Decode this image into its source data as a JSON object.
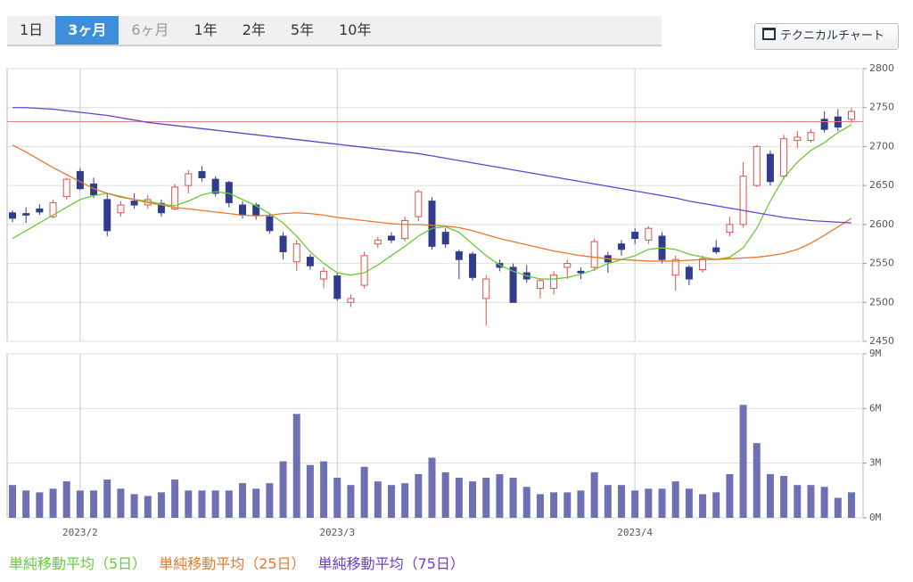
{
  "tabs": [
    "1日",
    "3ヶ月",
    "6ヶ月",
    "1年",
    "2年",
    "5年",
    "10年"
  ],
  "active_tab": 1,
  "disabled_tab": 2,
  "button": "テクニカルチャート",
  "chart_data": [
    {
      "type": "candlestick",
      "ylim": [
        2450,
        2800
      ],
      "yticks": [
        2450,
        2500,
        2550,
        2600,
        2650,
        2700,
        2750,
        2800
      ],
      "grid": true,
      "up_color": "#e0504a",
      "down_color": "#323c8c",
      "reference_line": {
        "value": 2732,
        "color": "#e88080"
      },
      "open": [
        2615,
        2614,
        2620,
        2610,
        2636,
        2668,
        2652,
        2632,
        2615,
        2630,
        2625,
        2627,
        2620,
        2650,
        2668,
        2658,
        2654,
        2625,
        2625,
        2610,
        2585,
        2552,
        2558,
        2530,
        2534,
        2500,
        2522,
        2575,
        2585,
        2582,
        2610,
        2630,
        2590,
        2565,
        2562,
        2505,
        2550,
        2545,
        2538,
        2518,
        2518,
        2545,
        2540,
        2545,
        2560,
        2575,
        2590,
        2580,
        2585,
        2535,
        2545,
        2542,
        2570,
        2590,
        2600,
        2650,
        2690,
        2662,
        2708,
        2708,
        2735,
        2738,
        2735
      ],
      "high": [
        2618,
        2622,
        2626,
        2632,
        2660,
        2672,
        2660,
        2640,
        2630,
        2640,
        2638,
        2632,
        2652,
        2670,
        2675,
        2662,
        2656,
        2630,
        2628,
        2614,
        2590,
        2580,
        2562,
        2545,
        2538,
        2510,
        2565,
        2584,
        2590,
        2610,
        2645,
        2635,
        2595,
        2568,
        2565,
        2535,
        2555,
        2550,
        2548,
        2530,
        2540,
        2555,
        2545,
        2582,
        2565,
        2580,
        2595,
        2598,
        2590,
        2560,
        2548,
        2560,
        2580,
        2610,
        2680,
        2702,
        2695,
        2715,
        2720,
        2722,
        2745,
        2748,
        2750
      ],
      "low": [
        2603,
        2602,
        2612,
        2608,
        2632,
        2644,
        2634,
        2585,
        2610,
        2620,
        2620,
        2610,
        2618,
        2640,
        2655,
        2636,
        2622,
        2608,
        2606,
        2588,
        2555,
        2540,
        2542,
        2518,
        2502,
        2494,
        2518,
        2570,
        2576,
        2578,
        2604,
        2568,
        2570,
        2530,
        2528,
        2470,
        2540,
        2500,
        2525,
        2505,
        2510,
        2530,
        2530,
        2540,
        2538,
        2560,
        2575,
        2575,
        2550,
        2515,
        2522,
        2538,
        2562,
        2585,
        2596,
        2648,
        2650,
        2658,
        2698,
        2705,
        2718,
        2720,
        2730
      ],
      "close": [
        2608,
        2612,
        2616,
        2628,
        2658,
        2646,
        2638,
        2592,
        2625,
        2625,
        2632,
        2615,
        2648,
        2665,
        2660,
        2640,
        2628,
        2612,
        2612,
        2592,
        2565,
        2575,
        2547,
        2540,
        2505,
        2505,
        2560,
        2580,
        2580,
        2605,
        2642,
        2572,
        2575,
        2555,
        2532,
        2530,
        2545,
        2500,
        2530,
        2528,
        2535,
        2550,
        2538,
        2578,
        2552,
        2568,
        2582,
        2595,
        2555,
        2555,
        2530,
        2556,
        2565,
        2600,
        2662,
        2700,
        2655,
        2710,
        2712,
        2718,
        2722,
        2725,
        2745
      ],
      "series": [
        {
          "name": "単純移動平均（5日）",
          "color": "#66cc33",
          "values": [
            2582,
            2592,
            2602,
            2612,
            2622,
            2632,
            2637,
            2640,
            2636,
            2632,
            2630,
            2626,
            2624,
            2630,
            2638,
            2642,
            2640,
            2632,
            2624,
            2614,
            2602,
            2585,
            2565,
            2550,
            2538,
            2535,
            2538,
            2548,
            2560,
            2572,
            2585,
            2595,
            2597,
            2590,
            2575,
            2560,
            2548,
            2540,
            2534,
            2530,
            2530,
            2532,
            2536,
            2542,
            2550,
            2555,
            2560,
            2568,
            2570,
            2568,
            2562,
            2558,
            2555,
            2558,
            2570,
            2595,
            2630,
            2660,
            2680,
            2695,
            2705,
            2718,
            2728
          ]
        },
        {
          "name": "単純移動平均（25日）",
          "color": "#e8782a",
          "values": [
            2702,
            2693,
            2683,
            2673,
            2664,
            2655,
            2646,
            2640,
            2635,
            2632,
            2628,
            2625,
            2622,
            2620,
            2618,
            2616,
            2614,
            2612,
            2611,
            2612,
            2614,
            2615,
            2614,
            2612,
            2609,
            2607,
            2605,
            2603,
            2601,
            2600,
            2600,
            2599,
            2598,
            2596,
            2592,
            2587,
            2582,
            2578,
            2574,
            2570,
            2566,
            2563,
            2560,
            2558,
            2556,
            2555,
            2554,
            2553,
            2553,
            2553,
            2554,
            2555,
            2555,
            2556,
            2557,
            2558,
            2560,
            2563,
            2568,
            2576,
            2586,
            2597,
            2608
          ]
        },
        {
          "name": "単純移動平均（75日）",
          "color": "#6a3fcf",
          "values": [
            2750,
            2750,
            2749,
            2748,
            2746,
            2744,
            2742,
            2740,
            2737,
            2734,
            2731,
            2729,
            2727,
            2725,
            2723,
            2721,
            2719,
            2717,
            2715,
            2713,
            2711,
            2709,
            2707,
            2705,
            2703,
            2701,
            2699,
            2697,
            2695,
            2693,
            2691,
            2688,
            2685,
            2682,
            2679,
            2676,
            2673,
            2670,
            2667,
            2664,
            2661,
            2658,
            2655,
            2652,
            2649,
            2646,
            2643,
            2640,
            2637,
            2634,
            2630,
            2627,
            2624,
            2621,
            2618,
            2615,
            2612,
            2609,
            2607,
            2605,
            2604,
            2603,
            2602
          ]
        }
      ]
    },
    {
      "type": "bar",
      "color": "#6e70b4",
      "grid": true,
      "ylim": [
        0,
        9
      ],
      "yticks": [
        {
          "value": 0,
          "label": "0M"
        },
        {
          "value": 3,
          "label": "3M"
        },
        {
          "value": 6,
          "label": "6M"
        },
        {
          "value": 9,
          "label": "9M"
        }
      ],
      "categories": [
        null,
        null,
        null,
        null,
        null,
        "2023/2",
        null,
        null,
        null,
        null,
        null,
        null,
        null,
        null,
        null,
        null,
        null,
        null,
        null,
        null,
        null,
        null,
        null,
        null,
        "2023/3",
        null,
        null,
        null,
        null,
        null,
        null,
        null,
        null,
        null,
        null,
        null,
        null,
        null,
        null,
        null,
        null,
        null,
        null,
        null,
        null,
        null,
        "2023/4",
        null,
        null,
        null,
        null,
        null,
        null,
        null,
        null,
        null,
        null,
        null,
        null,
        null,
        null,
        null,
        null
      ],
      "values": [
        1.8,
        1.5,
        1.4,
        1.6,
        2.0,
        1.5,
        1.5,
        2.1,
        1.6,
        1.3,
        1.2,
        1.4,
        2.1,
        1.5,
        1.5,
        1.5,
        1.5,
        1.9,
        1.6,
        1.9,
        3.1,
        5.7,
        2.9,
        3.1,
        2.2,
        1.8,
        2.8,
        2.0,
        1.8,
        1.9,
        2.4,
        3.3,
        2.5,
        2.2,
        2.0,
        2.2,
        2.4,
        2.2,
        1.7,
        1.3,
        1.4,
        1.4,
        1.5,
        2.5,
        1.8,
        1.8,
        1.5,
        1.6,
        1.6,
        2.0,
        1.6,
        1.3,
        1.4,
        2.4,
        6.2,
        4.1,
        2.4,
        2.3,
        1.8,
        1.8,
        1.7,
        1.1,
        1.4
      ]
    }
  ]
}
